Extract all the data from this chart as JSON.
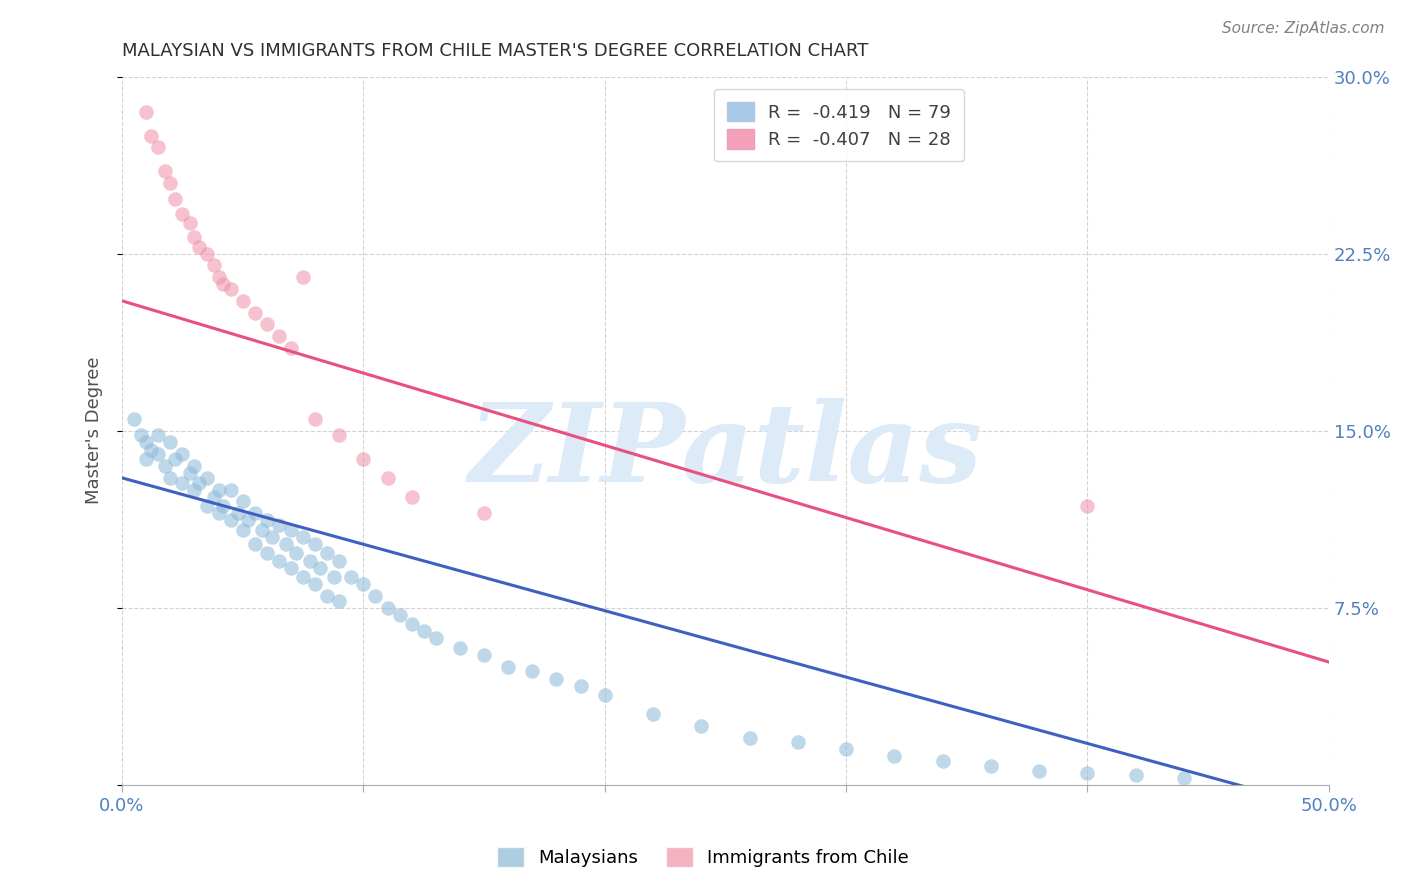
{
  "title": "MALAYSIAN VS IMMIGRANTS FROM CHILE MASTER'S DEGREE CORRELATION CHART",
  "source": "Source: ZipAtlas.com",
  "ylabel": "Master's Degree",
  "watermark": "ZIPatlas",
  "xlim": [
    0.0,
    0.5
  ],
  "ylim": [
    0.0,
    0.3
  ],
  "xticks": [
    0.0,
    0.1,
    0.2,
    0.3,
    0.4,
    0.5
  ],
  "yticks": [
    0.0,
    0.075,
    0.15,
    0.225,
    0.3
  ],
  "ytick_labels": [
    "",
    "7.5%",
    "15.0%",
    "22.5%",
    "30.0%"
  ],
  "xtick_labels": [
    "0.0%",
    "",
    "",
    "",
    "",
    "50.0%"
  ],
  "legend_entries": [
    {
      "label": "R =  -0.419   N = 79",
      "color": "#a8c8e8"
    },
    {
      "label": "R =  -0.407   N = 28",
      "color": "#f4a0b8"
    }
  ],
  "blue_scatter_x": [
    0.005,
    0.008,
    0.01,
    0.01,
    0.012,
    0.015,
    0.015,
    0.018,
    0.02,
    0.02,
    0.022,
    0.025,
    0.025,
    0.028,
    0.03,
    0.03,
    0.032,
    0.035,
    0.035,
    0.038,
    0.04,
    0.04,
    0.042,
    0.045,
    0.045,
    0.048,
    0.05,
    0.05,
    0.052,
    0.055,
    0.055,
    0.058,
    0.06,
    0.06,
    0.062,
    0.065,
    0.065,
    0.068,
    0.07,
    0.07,
    0.072,
    0.075,
    0.075,
    0.078,
    0.08,
    0.08,
    0.082,
    0.085,
    0.085,
    0.088,
    0.09,
    0.09,
    0.095,
    0.1,
    0.105,
    0.11,
    0.115,
    0.12,
    0.125,
    0.13,
    0.14,
    0.15,
    0.16,
    0.17,
    0.18,
    0.19,
    0.2,
    0.22,
    0.24,
    0.26,
    0.28,
    0.3,
    0.32,
    0.34,
    0.36,
    0.38,
    0.4,
    0.42,
    0.44
  ],
  "blue_scatter_y": [
    0.155,
    0.148,
    0.145,
    0.138,
    0.142,
    0.148,
    0.14,
    0.135,
    0.145,
    0.13,
    0.138,
    0.14,
    0.128,
    0.132,
    0.135,
    0.125,
    0.128,
    0.13,
    0.118,
    0.122,
    0.125,
    0.115,
    0.118,
    0.125,
    0.112,
    0.115,
    0.12,
    0.108,
    0.112,
    0.115,
    0.102,
    0.108,
    0.112,
    0.098,
    0.105,
    0.11,
    0.095,
    0.102,
    0.108,
    0.092,
    0.098,
    0.105,
    0.088,
    0.095,
    0.102,
    0.085,
    0.092,
    0.098,
    0.08,
    0.088,
    0.095,
    0.078,
    0.088,
    0.085,
    0.08,
    0.075,
    0.072,
    0.068,
    0.065,
    0.062,
    0.058,
    0.055,
    0.05,
    0.048,
    0.045,
    0.042,
    0.038,
    0.03,
    0.025,
    0.02,
    0.018,
    0.015,
    0.012,
    0.01,
    0.008,
    0.006,
    0.005,
    0.004,
    0.003
  ],
  "pink_scatter_x": [
    0.01,
    0.012,
    0.015,
    0.018,
    0.02,
    0.022,
    0.025,
    0.028,
    0.03,
    0.032,
    0.035,
    0.038,
    0.04,
    0.042,
    0.045,
    0.05,
    0.055,
    0.06,
    0.065,
    0.07,
    0.075,
    0.08,
    0.09,
    0.1,
    0.11,
    0.12,
    0.15,
    0.4
  ],
  "pink_scatter_y": [
    0.285,
    0.275,
    0.27,
    0.26,
    0.255,
    0.248,
    0.242,
    0.238,
    0.232,
    0.228,
    0.225,
    0.22,
    0.215,
    0.212,
    0.21,
    0.205,
    0.2,
    0.195,
    0.19,
    0.185,
    0.215,
    0.155,
    0.148,
    0.138,
    0.13,
    0.122,
    0.115,
    0.118
  ],
  "blue_line_x": [
    0.0,
    0.48
  ],
  "blue_line_y": [
    0.13,
    -0.005
  ],
  "pink_line_x": [
    0.0,
    0.5
  ],
  "pink_line_y": [
    0.205,
    0.052
  ],
  "blue_color": "#8ab8d8",
  "pink_color": "#f090a8",
  "blue_line_color": "#4060c0",
  "pink_line_color": "#e85080",
  "watermark_color": "#ddeaf8",
  "grid_color": "#c8c8c8",
  "title_color": "#303030",
  "tick_color": "#5080c0",
  "background_color": "#ffffff"
}
